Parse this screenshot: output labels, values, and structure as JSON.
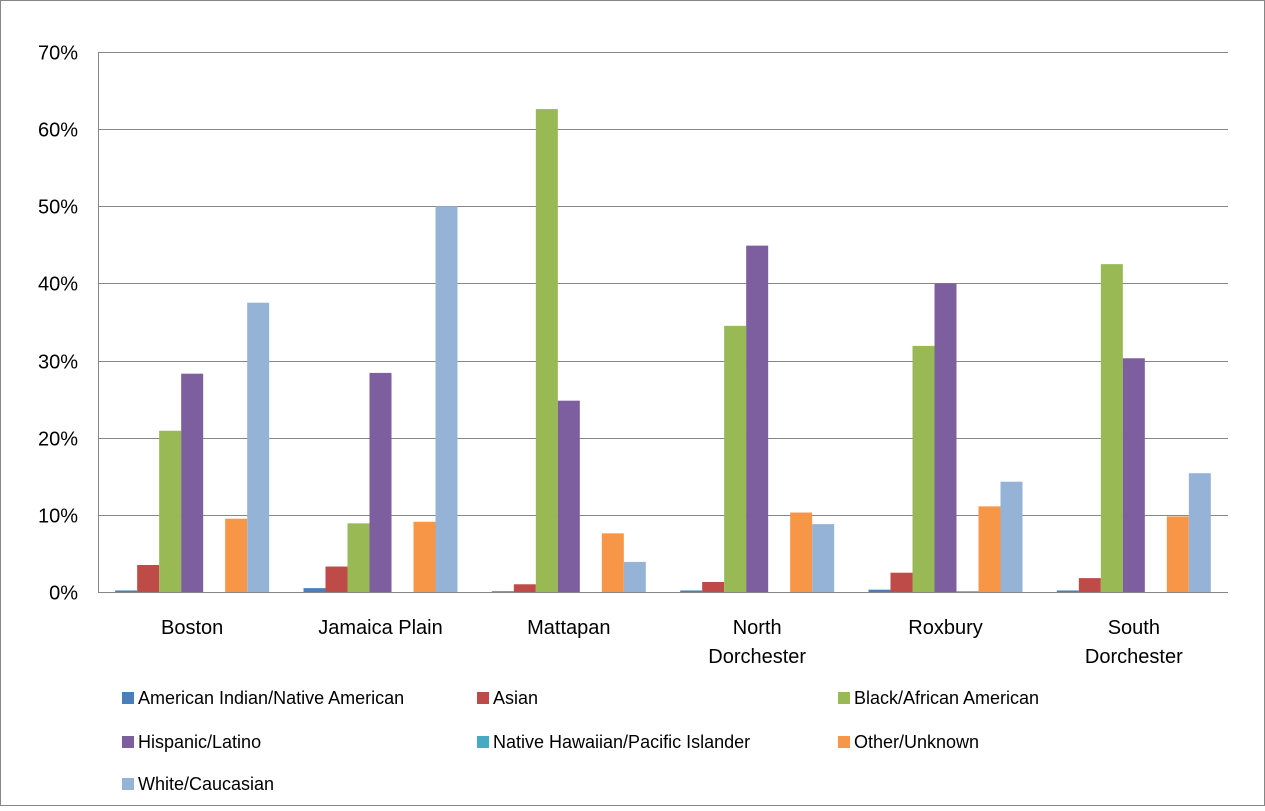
{
  "chart_data": {
    "type": "bar",
    "title": "",
    "xlabel": "",
    "ylabel": "",
    "ylim": [
      0,
      70
    ],
    "y_tick_values": [
      0,
      10,
      20,
      30,
      40,
      50,
      60,
      70
    ],
    "y_tick_labels": [
      "0%",
      "10%",
      "20%",
      "30%",
      "40%",
      "50%",
      "60%",
      "70%"
    ],
    "grid": "horizontal",
    "legend_position": "bottom",
    "categories": [
      [
        "Boston"
      ],
      [
        "Jamaica Plain"
      ],
      [
        "Mattapan"
      ],
      [
        "North",
        "Dorchester"
      ],
      [
        "Roxbury"
      ],
      [
        "South",
        "Dorchester"
      ]
    ],
    "series": [
      {
        "name": "American Indian/Native American",
        "color": "#4a7ebb",
        "values": [
          0.2,
          0.5,
          0.1,
          0.2,
          0.3,
          0.2
        ]
      },
      {
        "name": "Asian",
        "color": "#be4b48",
        "values": [
          3.5,
          3.3,
          1.0,
          1.3,
          2.5,
          1.8
        ]
      },
      {
        "name": "Black/African American",
        "color": "#98b954",
        "values": [
          20.9,
          8.9,
          62.6,
          34.5,
          31.9,
          42.5
        ]
      },
      {
        "name": "Hispanic/Latino",
        "color": "#7d5fa0",
        "values": [
          28.3,
          28.4,
          24.8,
          44.9,
          40.0,
          30.3
        ]
      },
      {
        "name": "Native Hawaiian/Pacific Islander",
        "color": "#46aac5",
        "values": [
          0.0,
          0.0,
          0.0,
          0.0,
          0.1,
          0.0
        ]
      },
      {
        "name": "Other/Unknown",
        "color": "#f79646",
        "values": [
          9.5,
          9.1,
          7.6,
          10.3,
          11.1,
          9.8
        ]
      },
      {
        "name": "White/Caucasian",
        "color": "#95b3d7",
        "values": [
          37.5,
          50.0,
          3.9,
          8.8,
          14.3,
          15.4
        ]
      }
    ],
    "axis_color": "#868686",
    "gridline_color": "#868686"
  }
}
